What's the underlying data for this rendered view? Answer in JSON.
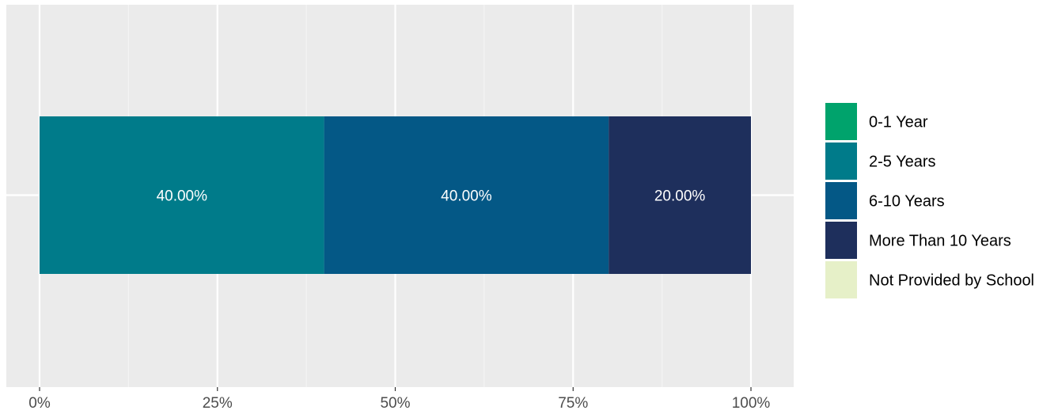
{
  "chart_data": {
    "type": "bar",
    "orientation": "horizontal",
    "stacked": true,
    "title": "",
    "xlabel": "",
    "ylabel": "",
    "xlim": [
      0,
      100
    ],
    "x_ticks": [
      0,
      25,
      50,
      75,
      100
    ],
    "x_tick_labels": [
      "0%",
      "25%",
      "50%",
      "75%",
      "100%"
    ],
    "grid": true,
    "legend_position": "right",
    "categories": [
      ""
    ],
    "series": [
      {
        "name": "0-1 Year",
        "values": [
          0
        ],
        "label": "",
        "color": "#00a36c"
      },
      {
        "name": "2-5 Years",
        "values": [
          40
        ],
        "label": "40.00%",
        "color": "#007b8a"
      },
      {
        "name": "6-10 Years",
        "values": [
          40
        ],
        "label": "40.00%",
        "color": "#045886"
      },
      {
        "name": "More Than 10 Years",
        "values": [
          20
        ],
        "label": "20.00%",
        "color": "#1e2f5c"
      },
      {
        "name": "Not Provided by School",
        "values": [
          0
        ],
        "label": "",
        "color": "#e6f0c8"
      }
    ]
  },
  "colors": {
    "panel_background": "#ebebeb",
    "grid_major": "#ffffff",
    "grid_minor": "#f4f4f4",
    "axis_text": "#4d4d4d",
    "bar_label_text": "#ffffff"
  }
}
